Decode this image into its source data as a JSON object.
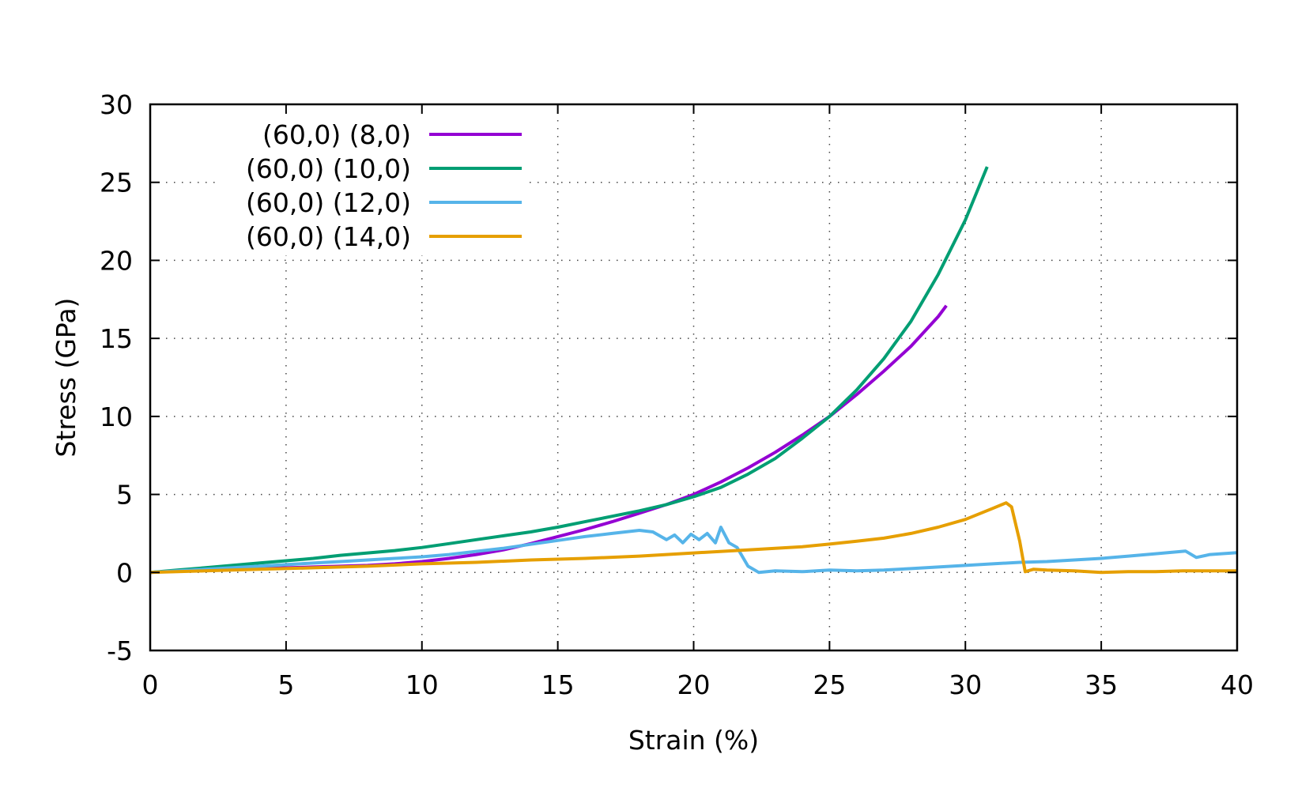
{
  "chart_data": {
    "type": "line",
    "title": "",
    "xlabel": "Strain (%)",
    "ylabel": "Stress (GPa)",
    "xlim": [
      0,
      40
    ],
    "ylim": [
      -5,
      30
    ],
    "xticks": [
      0,
      5,
      10,
      15,
      20,
      25,
      30,
      35,
      40
    ],
    "yticks": [
      -5,
      0,
      5,
      10,
      15,
      20,
      25,
      30
    ],
    "grid": true,
    "legend_position": "top-left",
    "series": [
      {
        "name": "(60,0) (8,0)",
        "color": "#9400d3",
        "x": [
          0,
          1,
          2,
          3,
          4,
          5,
          6,
          7,
          8,
          9,
          10,
          11,
          12,
          13,
          14,
          15,
          16,
          17,
          18,
          19,
          20,
          21,
          22,
          23,
          24,
          25,
          26,
          27,
          28,
          29,
          29.3
        ],
        "y": [
          0,
          0.1,
          0.15,
          0.2,
          0.25,
          0.3,
          0.35,
          0.4,
          0.45,
          0.55,
          0.7,
          0.9,
          1.15,
          1.45,
          1.85,
          2.3,
          2.75,
          3.25,
          3.8,
          4.35,
          5.0,
          5.8,
          6.7,
          7.7,
          8.8,
          10.0,
          11.4,
          12.9,
          14.5,
          16.4,
          17.1
        ]
      },
      {
        "name": "(60,0) (10,0)",
        "color": "#009e73",
        "x": [
          0,
          1,
          2,
          3,
          4,
          5,
          6,
          7,
          8,
          9,
          10,
          11,
          12,
          13,
          14,
          15,
          16,
          17,
          18,
          19,
          20,
          21,
          22,
          23,
          24,
          25,
          26,
          27,
          28,
          29,
          30,
          30.8
        ],
        "y": [
          0,
          0.15,
          0.3,
          0.45,
          0.6,
          0.75,
          0.9,
          1.1,
          1.25,
          1.4,
          1.6,
          1.85,
          2.1,
          2.35,
          2.6,
          2.9,
          3.25,
          3.6,
          3.95,
          4.35,
          4.85,
          5.45,
          6.3,
          7.3,
          8.6,
          10.0,
          11.7,
          13.7,
          16.1,
          19.1,
          22.6,
          26.0
        ]
      },
      {
        "name": "(60,0) (12,0)",
        "color": "#56b4e9",
        "x": [
          0,
          1,
          2,
          3,
          4,
          5,
          6,
          7,
          8,
          9,
          10,
          11,
          12,
          13,
          14,
          15,
          16,
          17,
          18,
          18.5,
          19,
          19.3,
          19.6,
          19.9,
          20.2,
          20.5,
          20.8,
          21.0,
          21.3,
          21.6,
          22.0,
          22.4,
          23,
          24,
          25,
          26,
          27,
          28,
          29,
          30,
          31,
          32,
          33,
          34,
          35,
          36,
          37,
          38.1,
          38.5,
          39,
          40
        ],
        "y": [
          0,
          0.1,
          0.2,
          0.3,
          0.4,
          0.5,
          0.6,
          0.7,
          0.8,
          0.9,
          1.0,
          1.15,
          1.35,
          1.55,
          1.8,
          2.05,
          2.3,
          2.5,
          2.7,
          2.6,
          2.1,
          2.4,
          1.9,
          2.45,
          2.1,
          2.5,
          1.9,
          2.9,
          1.9,
          1.6,
          0.4,
          0.0,
          0.1,
          0.05,
          0.15,
          0.1,
          0.15,
          0.25,
          0.35,
          0.45,
          0.55,
          0.65,
          0.7,
          0.8,
          0.9,
          1.05,
          1.2,
          1.37,
          0.96,
          1.15,
          1.27
        ]
      },
      {
        "name": "(60,0) (14,0)",
        "color": "#e69f00",
        "x": [
          0,
          2,
          4,
          6,
          8,
          10,
          12,
          14,
          16,
          18,
          20,
          22,
          24,
          25,
          26,
          27,
          28,
          29,
          30,
          31,
          31.5,
          31.7,
          32.0,
          32.2,
          32.5,
          33,
          34,
          35,
          36,
          37,
          38,
          39,
          40
        ],
        "y": [
          0,
          0.1,
          0.2,
          0.3,
          0.4,
          0.55,
          0.65,
          0.8,
          0.9,
          1.05,
          1.25,
          1.45,
          1.65,
          1.82,
          2.0,
          2.2,
          2.5,
          2.9,
          3.4,
          4.1,
          4.46,
          4.2,
          2.0,
          0.05,
          0.2,
          0.15,
          0.1,
          0.0,
          0.05,
          0.05,
          0.1,
          0.1,
          0.1
        ]
      }
    ]
  }
}
